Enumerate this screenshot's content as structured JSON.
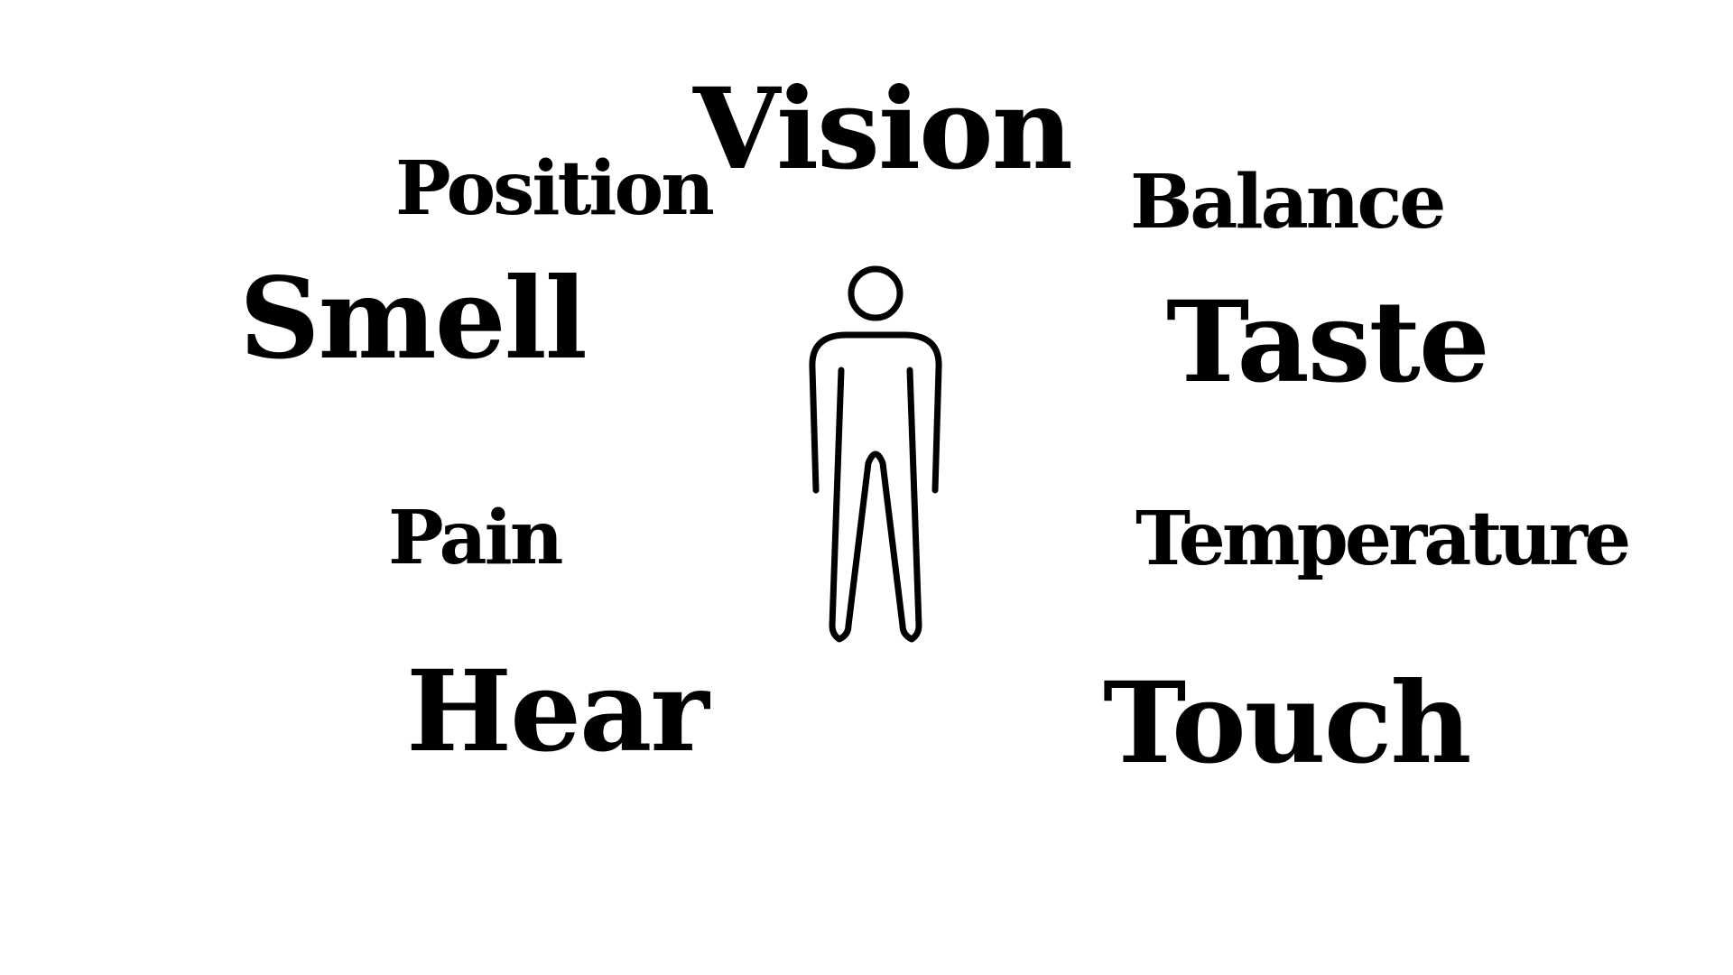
{
  "senses": {
    "vision": "Vision",
    "position": "Position",
    "balance": "Balance",
    "smell": "Smell",
    "taste": "Taste",
    "pain": "Pain",
    "temperature": "Temperature",
    "hear": "Hear",
    "touch": "Touch"
  },
  "figure": {
    "icon": "person-outline-icon",
    "stroke_color": "#000000"
  },
  "colors": {
    "background": "#ffffff",
    "text": "#000000"
  }
}
